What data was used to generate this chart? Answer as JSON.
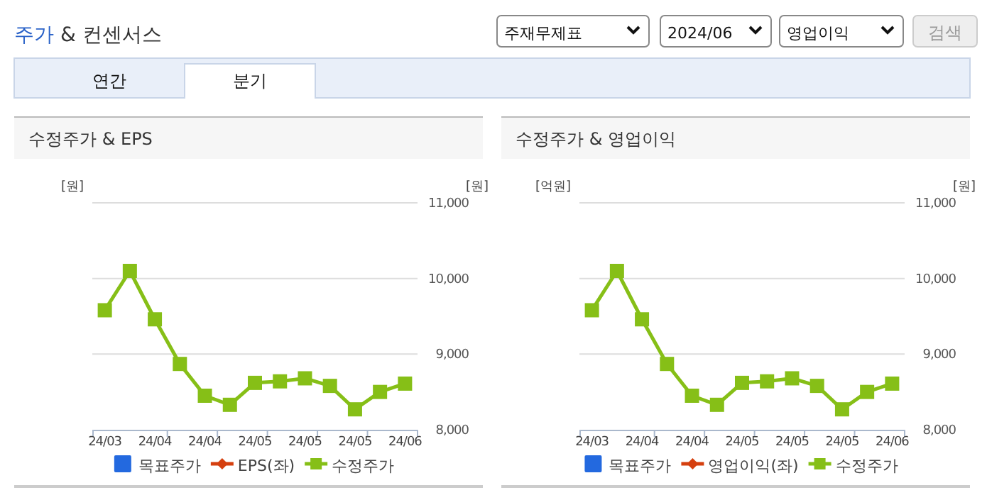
{
  "chart_data": [
    {
      "type": "other",
      "title": "주가 & 컨센서스",
      "annotations": [
        "주재무제표",
        "2024/06",
        "영업이익",
        "검색",
        "연간",
        "분기"
      ]
    },
    {
      "type": "line",
      "title": "수정주가 & EPS",
      "ylabel": "[원]",
      "y2label": "[원]",
      "categories": [
        "24/03",
        null,
        "24/04",
        null,
        "24/04",
        null,
        "24/05",
        null,
        "24/05",
        null,
        "24/05",
        null,
        "24/06"
      ],
      "y2lim": [
        8000,
        11000
      ],
      "y2ticks": [
        {
          "value": 8000,
          "label": "8,000"
        },
        {
          "value": 9000,
          "label": "9,000"
        },
        {
          "value": 10000,
          "label": "10,000"
        },
        {
          "value": 11000,
          "label": "11,000"
        }
      ],
      "grid": true,
      "legend": "bottom",
      "tick_labels": "x",
      "series": [
        {
          "name": "목표주가",
          "type": "bar",
          "color": "#2369df",
          "values": [
            null,
            null,
            null,
            null,
            null,
            null,
            null,
            null,
            null,
            null,
            null,
            null,
            null
          ]
        },
        {
          "name": "EPS(좌)",
          "type": "line",
          "marker": "diamond",
          "color": "#d5400f",
          "values": [
            null,
            null,
            null,
            null,
            null,
            null,
            null,
            null,
            null,
            null,
            null,
            null,
            null
          ]
        },
        {
          "name": "수정주가",
          "type": "line",
          "marker": "square",
          "axis": "y2",
          "color": "#86bf17",
          "values": [
            9580,
            10100,
            9460,
            8870,
            8450,
            8330,
            8620,
            8640,
            8680,
            8580,
            8270,
            8500,
            8610
          ]
        }
      ]
    },
    {
      "type": "line",
      "title": "수정주가 & 영업이익",
      "ylabel": "[억원]",
      "y2label": "[원]",
      "categories": [
        "24/03",
        null,
        "24/04",
        null,
        "24/04",
        null,
        "24/05",
        null,
        "24/05",
        null,
        "24/05",
        null,
        "24/06"
      ],
      "y2lim": [
        8000,
        11000
      ],
      "y2ticks": [
        {
          "value": 8000,
          "label": "8,000"
        },
        {
          "value": 9000,
          "label": "9,000"
        },
        {
          "value": 10000,
          "label": "10,000"
        },
        {
          "value": 11000,
          "label": "11,000"
        }
      ],
      "grid": true,
      "legend": "bottom",
      "tick_labels": "x",
      "series": [
        {
          "name": "목표주가",
          "type": "bar",
          "color": "#2369df",
          "values": [
            null,
            null,
            null,
            null,
            null,
            null,
            null,
            null,
            null,
            null,
            null,
            null,
            null
          ]
        },
        {
          "name": "영업이익(좌)",
          "type": "line",
          "marker": "diamond",
          "color": "#d5400f",
          "values": [
            null,
            null,
            null,
            null,
            null,
            null,
            null,
            null,
            null,
            null,
            null,
            null,
            null
          ]
        },
        {
          "name": "수정주가",
          "type": "line",
          "marker": "square",
          "axis": "y2",
          "color": "#86bf17",
          "values": [
            9580,
            10100,
            9460,
            8870,
            8450,
            8330,
            8620,
            8640,
            8680,
            8580,
            8270,
            8500,
            8610
          ]
        }
      ]
    }
  ]
}
